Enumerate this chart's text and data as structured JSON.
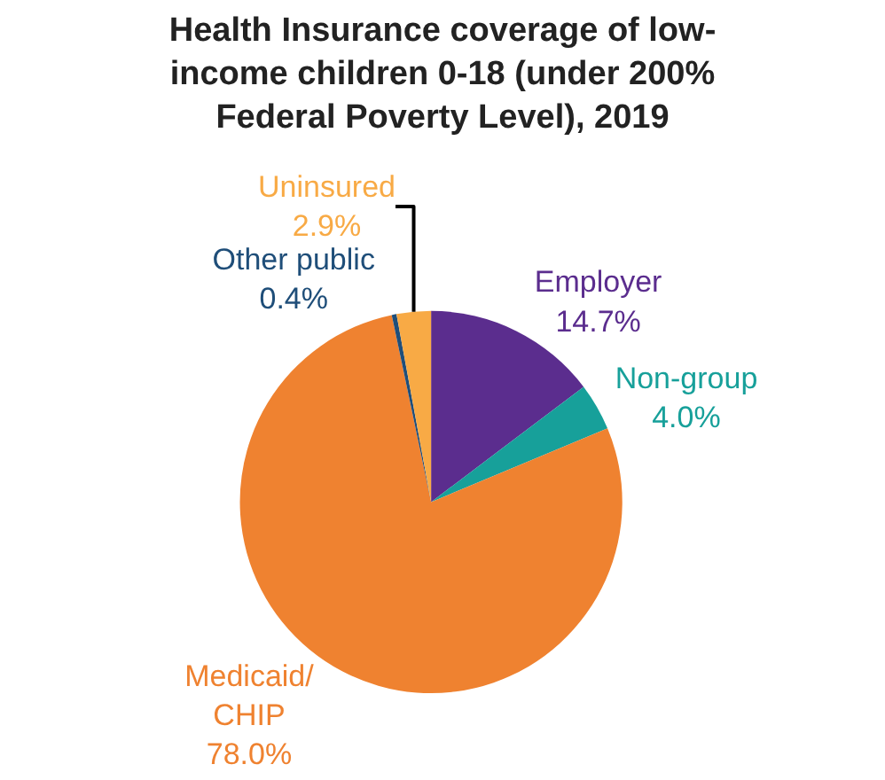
{
  "chart_data": {
    "type": "pie",
    "title": "Health Insurance coverage of low-\nincome children 0-18 (under 200%\nFederal Poverty Level), 2019",
    "categories": [
      "Employer",
      "Non-group",
      "Medicaid/\nCHIP",
      "Other public",
      "Uninsured"
    ],
    "values": [
      14.7,
      4.0,
      78.0,
      0.4,
      2.9
    ],
    "value_labels": [
      "14.7%",
      "4.0%",
      "78.0%",
      "0.4%",
      "2.9%"
    ],
    "colors": [
      "#5b2d8e",
      "#17a09a",
      "#ef8230",
      "#1f4e79",
      "#f8aa45"
    ],
    "legend": false
  }
}
